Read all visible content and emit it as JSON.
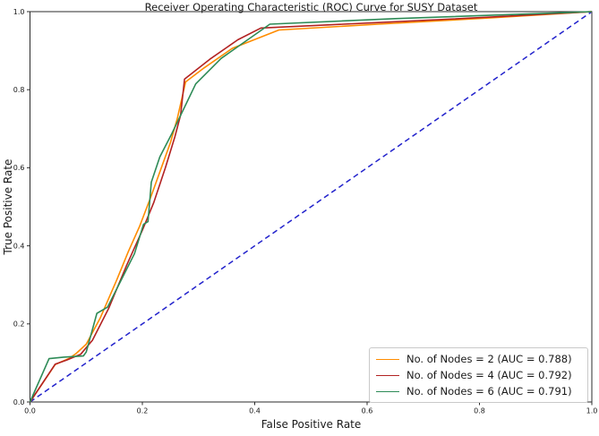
{
  "chart_data": {
    "type": "line",
    "title": "Receiver Operating Characteristic (ROC) Curve for SUSY Dataset",
    "xlabel": "False Positive Rate",
    "ylabel": "True Positive Rate",
    "xlim": [
      0.0,
      1.0
    ],
    "ylim": [
      0.0,
      1.0
    ],
    "x_ticks": [
      0.0,
      0.2,
      0.4,
      0.6,
      0.8,
      1.0
    ],
    "y_ticks": [
      0.0,
      0.2,
      0.4,
      0.6,
      0.8,
      1.0
    ],
    "x_tick_labels": [
      "0.0",
      "0.2",
      "0.4",
      "0.6",
      "0.8",
      "1.0"
    ],
    "y_tick_labels": [
      "0.0",
      "0.2",
      "0.4",
      "0.6",
      "0.8",
      "1.0"
    ],
    "grid": false,
    "legend_position": "lower right",
    "series": [
      {
        "name": "No. of Nodes = 2",
        "auc": 0.788,
        "legend_label": "No. of Nodes = 2 (AUC = 0.788)",
        "color": "#ff8c00",
        "style": "solid",
        "points": [
          [
            0,
            0
          ],
          [
            0.045,
            0.096
          ],
          [
            0.07,
            0.112
          ],
          [
            0.082,
            0.124
          ],
          [
            0.1,
            0.148
          ],
          [
            0.125,
            0.215
          ],
          [
            0.155,
            0.315
          ],
          [
            0.175,
            0.385
          ],
          [
            0.195,
            0.45
          ],
          [
            0.215,
            0.525
          ],
          [
            0.235,
            0.605
          ],
          [
            0.25,
            0.665
          ],
          [
            0.262,
            0.725
          ],
          [
            0.277,
            0.82
          ],
          [
            0.31,
            0.856
          ],
          [
            0.36,
            0.906
          ],
          [
            0.443,
            0.953
          ],
          [
            0.62,
            0.968
          ],
          [
            0.82,
            0.984
          ],
          [
            1,
            1
          ]
        ]
      },
      {
        "name": "No. of Nodes = 4",
        "auc": 0.792,
        "legend_label": "No. of Nodes = 4 (AUC = 0.792)",
        "color": "#b22222",
        "style": "solid",
        "points": [
          [
            0,
            0
          ],
          [
            0.045,
            0.097
          ],
          [
            0.065,
            0.107
          ],
          [
            0.09,
            0.122
          ],
          [
            0.111,
            0.158
          ],
          [
            0.14,
            0.24
          ],
          [
            0.172,
            0.35
          ],
          [
            0.2,
            0.44
          ],
          [
            0.22,
            0.51
          ],
          [
            0.241,
            0.6
          ],
          [
            0.258,
            0.68
          ],
          [
            0.268,
            0.735
          ],
          [
            0.275,
            0.827
          ],
          [
            0.32,
            0.878
          ],
          [
            0.37,
            0.928
          ],
          [
            0.411,
            0.958
          ],
          [
            0.62,
            0.972
          ],
          [
            0.82,
            0.986
          ],
          [
            1,
            1
          ]
        ]
      },
      {
        "name": "No. of Nodes = 6",
        "auc": 0.791,
        "legend_label": "No. of Nodes = 6 (AUC = 0.791)",
        "color": "#2e8b57",
        "style": "solid",
        "points": [
          [
            0,
            0
          ],
          [
            0.034,
            0.111
          ],
          [
            0.06,
            0.115
          ],
          [
            0.095,
            0.118
          ],
          [
            0.1,
            0.128
          ],
          [
            0.119,
            0.227
          ],
          [
            0.138,
            0.243
          ],
          [
            0.165,
            0.32
          ],
          [
            0.186,
            0.38
          ],
          [
            0.202,
            0.455
          ],
          [
            0.21,
            0.462
          ],
          [
            0.216,
            0.563
          ],
          [
            0.231,
            0.628
          ],
          [
            0.252,
            0.686
          ],
          [
            0.295,
            0.815
          ],
          [
            0.34,
            0.88
          ],
          [
            0.427,
            0.968
          ],
          [
            0.65,
            0.982
          ],
          [
            1,
            1
          ]
        ]
      }
    ],
    "reference_line": {
      "name": "chance-diagonal",
      "color": "#2222cc",
      "style": "dashed",
      "points": [
        [
          0,
          0
        ],
        [
          1,
          1
        ]
      ]
    }
  },
  "layout_colors": {
    "spine": "#2b2b2b",
    "tick": "#2b2b2b",
    "tick_label": "#1a1a1a",
    "background": "#ffffff"
  }
}
